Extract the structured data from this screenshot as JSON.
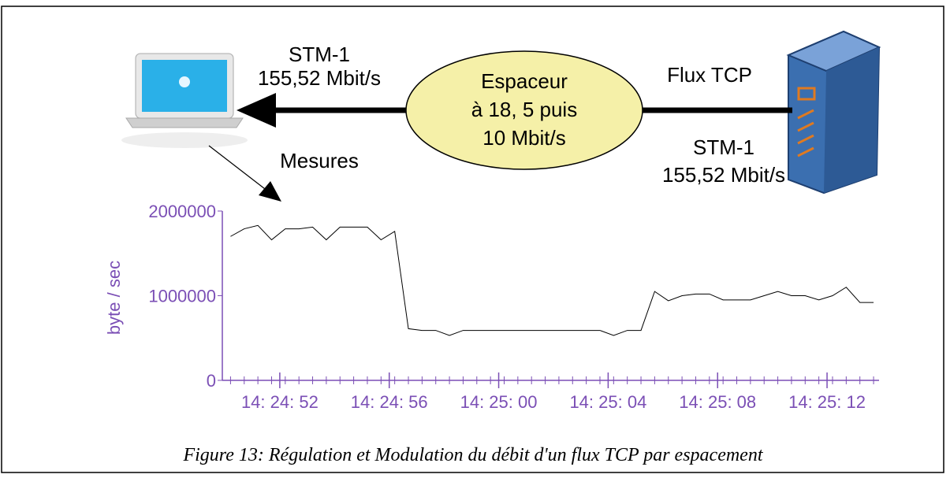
{
  "diagram": {
    "left_link": [
      "STM-1",
      "155,52 Mbit/s"
    ],
    "spacer": [
      "Espaceur",
      "à 18, 5 puis",
      "10 Mbit/s"
    ],
    "flow_label": "Flux TCP",
    "right_link": [
      "STM-1",
      "155,52 Mbit/s"
    ],
    "measures_label": "Mesures"
  },
  "chart_data": {
    "type": "line",
    "y_label": "byte / sec",
    "color": "#000000",
    "axis_color": "#7b4fb5",
    "x": [
      50.2,
      50.7,
      51.2,
      51.7,
      52.2,
      52.7,
      53.2,
      53.7,
      54.2,
      54.7,
      55.2,
      55.7,
      56.2,
      56.7,
      57.2,
      57.7,
      58.2,
      58.7,
      59.2,
      59.7,
      60.2,
      60.7,
      61.2,
      61.7,
      62.2,
      62.7,
      63.2,
      63.7,
      64.2,
      64.7,
      65.2,
      65.7,
      66.2,
      66.7,
      67.2,
      67.7,
      68.2,
      68.7,
      69.2,
      69.7,
      70.2,
      70.7,
      71.2,
      71.7,
      72.2,
      72.7,
      73.2,
      73.7
    ],
    "values": [
      1700000,
      1790000,
      1830000,
      1660000,
      1790000,
      1790000,
      1810000,
      1660000,
      1810000,
      1810000,
      1810000,
      1660000,
      1760000,
      610000,
      590000,
      590000,
      530000,
      590000,
      590000,
      590000,
      590000,
      590000,
      590000,
      590000,
      590000,
      590000,
      590000,
      590000,
      530000,
      590000,
      590000,
      1050000,
      940000,
      1000000,
      1020000,
      1020000,
      950000,
      950000,
      950000,
      1000000,
      1050000,
      1000000,
      1000000,
      950000,
      1000000,
      1100000,
      920000,
      920000
    ],
    "xlim": [
      49.9,
      73.9
    ],
    "xticks": [
      {
        "value": 52,
        "label": "14: 24: 52"
      },
      {
        "value": 56,
        "label": "14: 24: 56"
      },
      {
        "value": 60,
        "label": "14: 25: 00"
      },
      {
        "value": 64,
        "label": "14: 25: 04"
      },
      {
        "value": 68,
        "label": "14: 25: 08"
      },
      {
        "value": 72,
        "label": "14: 25: 12"
      }
    ],
    "ylim": [
      0,
      2000000
    ],
    "yticks": [
      0,
      1000000,
      2000000
    ]
  },
  "caption": "Figure 13: Régulation et Modulation du débit d'un flux TCP par espacement"
}
